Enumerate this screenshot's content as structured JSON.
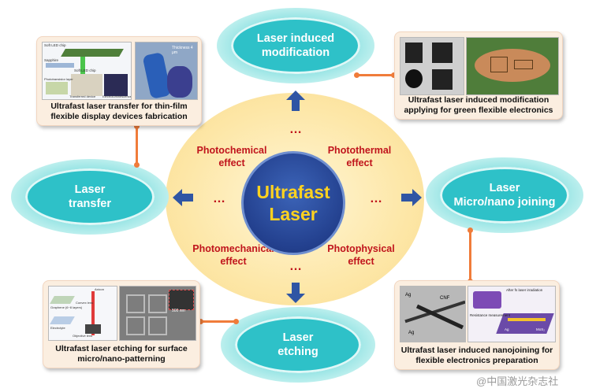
{
  "center": {
    "line1": "Ultrafast",
    "line2": "Laser"
  },
  "effects": {
    "photochemical": [
      "Photochemical",
      "effect"
    ],
    "photothermal": [
      "Photothermal",
      "effect"
    ],
    "photomechanical": [
      "Photomechanical",
      "effect"
    ],
    "photophysical": [
      "Photophysical",
      "effect"
    ],
    "ellipsis": "…"
  },
  "ovals": {
    "modification": [
      "Laser induced",
      "modification"
    ],
    "transfer": [
      "Laser",
      "transfer"
    ],
    "joining": [
      "Laser",
      "Micro/nano joining"
    ],
    "etching": [
      "Laser",
      "etching"
    ]
  },
  "cards": {
    "transfer": [
      "Ultrafast laser transfer for thin-film",
      "flexible display devices fabrication"
    ],
    "modification": [
      "Ultrafast laser induced modification",
      "applying for green flexible electronics"
    ],
    "etching": [
      "Ultrafast laser etching for surface",
      "micro/nano-patterning"
    ],
    "joining": [
      "Ultrafast laser induced nanojoining for",
      "flexible electronics preparation"
    ]
  },
  "figure_labels": {
    "transfer": [
      "Soft LED chip",
      "Sapphire",
      "Soft LED chip",
      "Thickness 4 μm",
      "Phototransistor layer",
      "Transferred device",
      "Electroluminescence"
    ],
    "etching": [
      "Graphene (6~8 layers)",
      "Electrolyte",
      "Convex lens",
      "Objective lens",
      "Axicon",
      "500 nm"
    ],
    "joining": [
      "Ag",
      "CNF",
      "Ag",
      "After fs laser irradiation",
      "Resistance measurement",
      "CNF",
      "Ag",
      "MoS₂"
    ]
  },
  "watermark": "@中国激光杂志社",
  "colors": {
    "ellipse": "#fde7a8",
    "core": "#23408e",
    "core_text": "#ffd21f",
    "effect_text": "#c0141c",
    "oval": "#2ec1c8",
    "card_bg": "#fbeee0",
    "connector": "#f07c3a",
    "arrow": "#2f55a4"
  }
}
